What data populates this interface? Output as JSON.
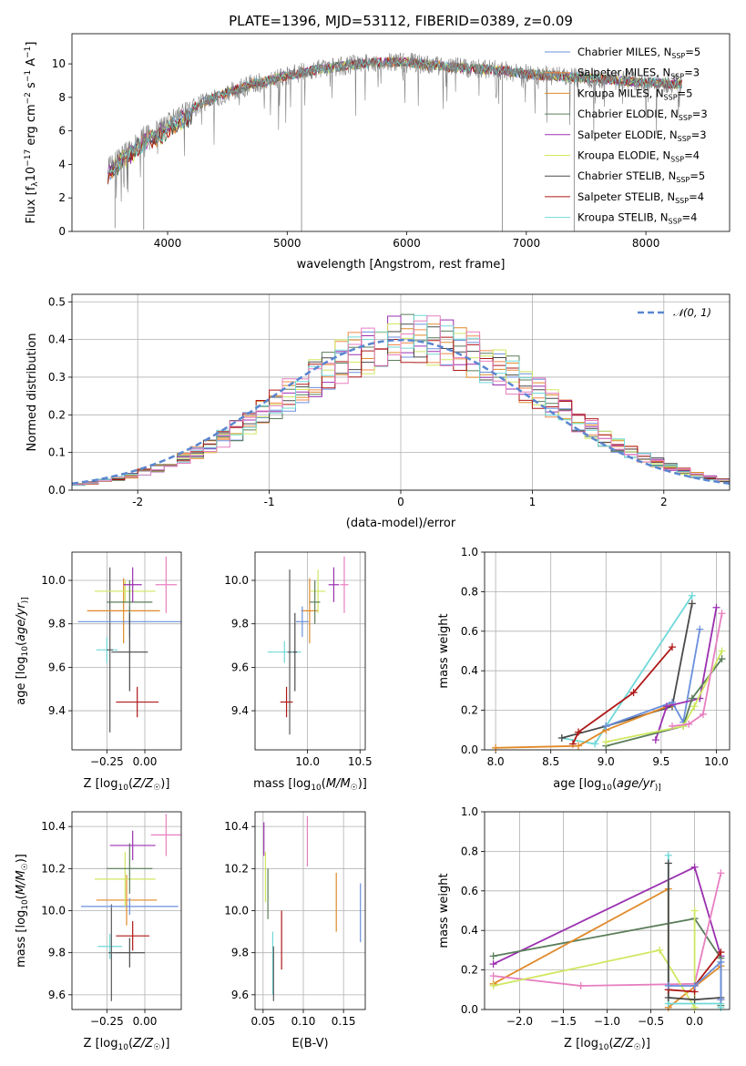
{
  "chart_data": [
    {
      "type": "line",
      "id": "spectrum",
      "title": "PLATE=1396, MJD=53112, FIBERID=0389, z=0.09",
      "xlabel": "wavelength [Angstrom, rest frame]",
      "ylabel": "Flux [f$_\\lambda$10$^{-17}$ erg cm$^{-2}$ s$^{-1}$ A$^{-1}$]",
      "ylabel_parts": [
        "Flux [f",
        "λ",
        "10",
        "−17",
        " erg cm",
        "−2",
        " s",
        "−1",
        " A",
        "−1",
        "]"
      ],
      "xlim": [
        3200,
        8700
      ],
      "ylim": [
        0,
        11.8
      ],
      "xticks": [
        4000,
        5000,
        6000,
        7000,
        8000
      ],
      "yticks": [
        0,
        2,
        4,
        6,
        8,
        10
      ],
      "legend_position": "right",
      "series": [
        {
          "name": "Chabrier MILES, N",
          "sub": "SSP",
          "suffix": "=5",
          "color": "#6a8fdc"
        },
        {
          "name": "Salpeter MILES, N",
          "sub": "SSP",
          "suffix": "=3",
          "color": "#f08a4b"
        },
        {
          "name": "Kroupa MILES, N",
          "sub": "SSP",
          "suffix": "=5",
          "color": "#e08a2a"
        },
        {
          "name": "Chabrier ELODIE, N",
          "sub": "SSP",
          "suffix": "=3",
          "color": "#5a7d5a"
        },
        {
          "name": "Salpeter ELODIE, N",
          "sub": "SSP",
          "suffix": "=3",
          "color": "#9b30b0"
        },
        {
          "name": "Kroupa ELODIE, N",
          "sub": "SSP",
          "suffix": "=4",
          "color": "#cfe860"
        },
        {
          "name": "Chabrier STELIB, N",
          "sub": "SSP",
          "suffix": "=5",
          "color": "#4a4a4a"
        },
        {
          "name": "Salpeter STELIB, N",
          "sub": "SSP",
          "suffix": "=4",
          "color": "#b01818"
        },
        {
          "name": "Kroupa STELIB, N",
          "sub": "SSP",
          "suffix": "=4",
          "color": "#70d8d8"
        }
      ],
      "continuum": {
        "x": [
          3500,
          3600,
          3700,
          3800,
          3900,
          4000,
          4100,
          4200,
          4300,
          4400,
          4500,
          4600,
          4700,
          4800,
          4900,
          5000,
          5200,
          5400,
          5600,
          5800,
          6000,
          6200,
          6400,
          6600,
          6800,
          7000,
          7200,
          7400,
          7600,
          7800,
          8000,
          8200
        ],
        "y": [
          3.8,
          4.5,
          5.1,
          5.7,
          6.0,
          6.5,
          7.0,
          7.3,
          7.7,
          8.0,
          8.3,
          8.5,
          8.8,
          8.9,
          9.1,
          9.3,
          9.6,
          9.8,
          10.0,
          10.1,
          10.1,
          9.9,
          9.8,
          9.7,
          9.6,
          9.4,
          9.3,
          9.2,
          9.1,
          9.0,
          8.9,
          8.8
        ]
      },
      "data_color": "#808080"
    },
    {
      "type": "line",
      "id": "residuals",
      "xlabel": "(data-model)/error",
      "ylabel": "Normed distribution",
      "xlim": [
        -2.5,
        2.5
      ],
      "ylim": [
        0,
        0.52
      ],
      "xticks": [
        -2,
        -1,
        0,
        1,
        2
      ],
      "yticks": [
        0.0,
        0.1,
        0.2,
        0.3,
        0.4,
        0.5
      ],
      "ytick_labels": [
        "0.0",
        "0.1",
        "0.2",
        "0.3",
        "0.4",
        "0.5"
      ],
      "legend_position": "top-right",
      "gaussian_label": "𝒩(0, 1)",
      "gaussian_color": "#5a86d0",
      "histogram_colors": [
        "#6a8fdc",
        "#f08a4b",
        "#e08a2a",
        "#5a7d5a",
        "#9b30b0",
        "#cfe860",
        "#4a4a4a",
        "#b01818",
        "#70d8d8",
        "#e77fc0"
      ]
    },
    {
      "type": "scatter",
      "id": "z-vs-age",
      "xlabel": "Z [log10(Z/Z☉)]",
      "xlabel_parts": [
        "Z [log",
        "10",
        "(",
        "Z/Z",
        "☉",
        ")]"
      ],
      "ylabel": "age [log10(age/yr)]",
      "ylabel_parts": [
        "age  [log",
        "10",
        "(",
        "age/yr",
        ")]"
      ],
      "xlim": [
        -0.48,
        0.24
      ],
      "ylim": [
        9.22,
        10.13
      ],
      "xticks": [
        -0.25,
        0.0
      ],
      "xtick_labels": [
        "−0.25",
        "0.00"
      ],
      "yticks": [
        9.4,
        9.6,
        9.8,
        10.0
      ],
      "yticks_labels": [
        "9.4",
        "9.6",
        "9.8",
        "10.0"
      ],
      "points": [
        {
          "x": -0.25,
          "y": 9.68,
          "xerr": 0.07,
          "yerr": 0.06,
          "color": "#70d8d8"
        },
        {
          "x": -0.23,
          "y": 9.68,
          "xerr": 0.02,
          "yerr": 0.38,
          "color": "#5a5a5a"
        },
        {
          "x": -0.05,
          "y": 9.44,
          "xerr": 0.14,
          "yerr": 0.07,
          "color": "#b01818"
        },
        {
          "x": -0.14,
          "y": 9.86,
          "xerr": 0.24,
          "yerr": 0.15,
          "color": "#e08a2a"
        },
        {
          "x": -0.1,
          "y": 9.81,
          "xerr": 0.34,
          "yerr": 0.07,
          "color": "#6a8fdc"
        },
        {
          "x": -0.13,
          "y": 9.95,
          "xerr": 0.2,
          "yerr": 0.05,
          "color": "#cfe860"
        },
        {
          "x": -0.1,
          "y": 9.9,
          "xerr": 0.15,
          "yerr": 0.1,
          "color": "#5a7d5a"
        },
        {
          "x": -0.1,
          "y": 9.67,
          "xerr": 0.12,
          "yerr": 0.18,
          "color": "#4a4a4a"
        },
        {
          "x": -0.08,
          "y": 9.98,
          "xerr": 0.06,
          "yerr": 0.08,
          "color": "#9b30b0"
        },
        {
          "x": 0.14,
          "y": 9.98,
          "xerr": 0.07,
          "yerr": 0.13,
          "color": "#e77fc0"
        }
      ]
    },
    {
      "type": "scatter",
      "id": "mass-vs-age",
      "xlabel": "mass [log10(M/M☉)]",
      "xlabel_parts": [
        "mass [log",
        "10",
        "(",
        "M/M",
        "☉",
        ")]"
      ],
      "xlim": [
        9.5,
        10.55
      ],
      "ylim": [
        9.22,
        10.13
      ],
      "xticks": [
        10.0,
        10.5
      ],
      "xtick_labels": [
        "10.0",
        "10.5"
      ],
      "yticks": [
        9.4,
        9.6,
        9.8,
        10.0
      ],
      "yticks_labels": [
        "9.4",
        "9.6",
        "9.8",
        "10.0"
      ],
      "points": [
        {
          "x": 9.78,
          "y": 9.67,
          "xerr": 0.16,
          "yerr": 0.05,
          "color": "#70d8d8"
        },
        {
          "x": 9.83,
          "y": 9.67,
          "xerr": 0.02,
          "yerr": 0.38,
          "color": "#5a5a5a"
        },
        {
          "x": 9.8,
          "y": 9.44,
          "xerr": 0.06,
          "yerr": 0.07,
          "color": "#b01818"
        },
        {
          "x": 10.02,
          "y": 9.86,
          "xerr": 0.08,
          "yerr": 0.15,
          "color": "#e08a2a"
        },
        {
          "x": 9.95,
          "y": 9.81,
          "xerr": 0.06,
          "yerr": 0.07,
          "color": "#6a8fdc"
        },
        {
          "x": 10.1,
          "y": 9.95,
          "xerr": 0.07,
          "yerr": 0.1,
          "color": "#cfe860"
        },
        {
          "x": 10.07,
          "y": 9.9,
          "xerr": 0.05,
          "yerr": 0.1,
          "color": "#5a7d5a"
        },
        {
          "x": 9.88,
          "y": 9.67,
          "xerr": 0.02,
          "yerr": 0.18,
          "color": "#4a4a4a"
        },
        {
          "x": 10.25,
          "y": 9.98,
          "xerr": 0.05,
          "yerr": 0.08,
          "color": "#9b30b0"
        },
        {
          "x": 10.35,
          "y": 9.98,
          "xerr": 0.04,
          "yerr": 0.13,
          "color": "#e77fc0"
        }
      ]
    },
    {
      "type": "line",
      "id": "age-vs-massweight",
      "xlabel": "age [log10(age/yr)]",
      "xlabel_parts": [
        "age  [log",
        "10",
        "(",
        "age/yr",
        ")]"
      ],
      "ylabel": "mass weight",
      "xlim": [
        7.9,
        10.12
      ],
      "ylim": [
        0,
        1.0
      ],
      "xticks": [
        8.0,
        8.5,
        9.0,
        9.5,
        10.0
      ],
      "xtick_labels": [
        "8.0",
        "8.5",
        "9.0",
        "9.5",
        "10.0"
      ],
      "yticks": [
        0.0,
        0.2,
        0.4,
        0.6,
        0.8,
        1.0
      ],
      "ytick_labels": [
        "0.0",
        "0.2",
        "0.4",
        "0.6",
        "0.8",
        "1.0"
      ],
      "series": [
        {
          "color": "#70d8d8",
          "x": [
            8.6,
            8.9,
            9.0,
            9.78
          ],
          "y": [
            0.06,
            0.03,
            0.12,
            0.78
          ]
        },
        {
          "color": "#4a4a4a",
          "x": [
            8.6,
            9.0,
            9.6,
            9.78
          ],
          "y": [
            0.06,
            0.12,
            0.22,
            0.74
          ]
        },
        {
          "color": "#b01818",
          "x": [
            8.7,
            8.75,
            9.25,
            9.6
          ],
          "y": [
            0.03,
            0.09,
            0.29,
            0.52
          ]
        },
        {
          "color": "#e08a2a",
          "x": [
            8.0,
            8.75,
            9.0,
            9.6
          ],
          "y": [
            0.01,
            0.02,
            0.1,
            0.23
          ]
        },
        {
          "color": "#6a8fdc",
          "x": [
            9.0,
            9.6,
            9.7,
            9.85
          ],
          "y": [
            0.12,
            0.24,
            0.14,
            0.61
          ]
        },
        {
          "color": "#9b30b0",
          "x": [
            9.45,
            9.55,
            9.85,
            10.0
          ],
          "y": [
            0.05,
            0.22,
            0.26,
            0.72
          ]
        },
        {
          "color": "#5a7d5a",
          "x": [
            9.0,
            9.7,
            9.78,
            10.05
          ],
          "y": [
            0.02,
            0.12,
            0.26,
            0.46
          ]
        },
        {
          "color": "#cfe860",
          "x": [
            9.0,
            9.7,
            9.8,
            10.05
          ],
          "y": [
            0.04,
            0.12,
            0.22,
            0.5
          ]
        },
        {
          "color": "#e77fc0",
          "x": [
            9.6,
            9.75,
            9.88,
            10.05
          ],
          "y": [
            0.12,
            0.13,
            0.18,
            0.69
          ]
        }
      ]
    },
    {
      "type": "scatter",
      "id": "z-vs-mass",
      "xlabel": "Z [log10(Z/Z☉)]",
      "xlabel_parts": [
        "Z [log",
        "10",
        "(",
        "Z/Z",
        "☉",
        ")]"
      ],
      "ylabel": "mass [log10(M/M☉)]",
      "ylabel_parts": [
        "mass [log",
        "10",
        "(",
        "M/M",
        "☉",
        ")]"
      ],
      "xlim": [
        -0.48,
        0.24
      ],
      "ylim": [
        9.53,
        10.47
      ],
      "xticks": [
        -0.25,
        0.0
      ],
      "xtick_labels": [
        "−0.25",
        "0.00"
      ],
      "yticks": [
        9.6,
        9.8,
        10.0,
        10.2,
        10.4
      ],
      "yticks_labels": [
        "9.6",
        "9.8",
        "10.0",
        "10.2",
        "10.4"
      ],
      "points": [
        {
          "x": -0.23,
          "y": 9.83,
          "xerr": 0.08,
          "yerr": 0.06,
          "color": "#70d8d8"
        },
        {
          "x": -0.22,
          "y": 9.8,
          "xerr": 0.02,
          "yerr": 0.23,
          "color": "#5a5a5a"
        },
        {
          "x": -0.08,
          "y": 9.88,
          "xerr": 0.11,
          "yerr": 0.07,
          "color": "#b01818"
        },
        {
          "x": -0.12,
          "y": 10.05,
          "xerr": 0.2,
          "yerr": 0.12,
          "color": "#e08a2a"
        },
        {
          "x": -0.1,
          "y": 10.02,
          "xerr": 0.32,
          "yerr": 0.04,
          "color": "#6a8fdc"
        },
        {
          "x": -0.13,
          "y": 10.15,
          "xerr": 0.2,
          "yerr": 0.13,
          "color": "#cfe860"
        },
        {
          "x": -0.1,
          "y": 10.2,
          "xerr": 0.15,
          "yerr": 0.12,
          "color": "#5a7d5a"
        },
        {
          "x": -0.1,
          "y": 9.8,
          "xerr": 0.1,
          "yerr": 0.07,
          "color": "#4a4a4a"
        },
        {
          "x": -0.08,
          "y": 10.31,
          "xerr": 0.15,
          "yerr": 0.07,
          "color": "#9b30b0"
        },
        {
          "x": 0.14,
          "y": 10.36,
          "xerr": 0.1,
          "yerr": 0.1,
          "color": "#e77fc0"
        }
      ]
    },
    {
      "type": "scatter",
      "id": "ebv-vs-mass",
      "xlabel": "E(B-V)",
      "xlim": [
        0.04,
        0.177
      ],
      "ylim": [
        9.53,
        10.47
      ],
      "xticks": [
        0.05,
        0.1,
        0.15
      ],
      "xtick_labels": [
        "0.05",
        "0.10",
        "0.15"
      ],
      "yticks": [
        9.6,
        9.8,
        10.0,
        10.2,
        10.4
      ],
      "yticks_labels": [
        "9.6",
        "9.8",
        "10.0",
        "10.2",
        "10.4"
      ],
      "points": [
        {
          "x": 0.051,
          "y": 10.34,
          "xerr": 0.0,
          "yerr": 0.08,
          "color": "#9b30b0"
        },
        {
          "x": 0.053,
          "y": 10.16,
          "xerr": 0.0,
          "yerr": 0.12,
          "color": "#cfe860"
        },
        {
          "x": 0.056,
          "y": 10.08,
          "xerr": 0.0,
          "yerr": 0.12,
          "color": "#5a7d5a"
        },
        {
          "x": 0.062,
          "y": 9.75,
          "xerr": 0.0,
          "yerr": 0.15,
          "color": "#70d8d8"
        },
        {
          "x": 0.063,
          "y": 9.7,
          "xerr": 0.0,
          "yerr": 0.13,
          "color": "#5a5a5a"
        },
        {
          "x": 0.073,
          "y": 9.86,
          "xerr": 0.0,
          "yerr": 0.14,
          "color": "#b01818"
        },
        {
          "x": 0.105,
          "y": 10.33,
          "xerr": 0.0,
          "yerr": 0.12,
          "color": "#e77fc0"
        },
        {
          "x": 0.141,
          "y": 10.04,
          "xerr": 0.0,
          "yerr": 0.14,
          "color": "#e08a2a"
        },
        {
          "x": 0.171,
          "y": 9.99,
          "xerr": 0.0,
          "yerr": 0.14,
          "color": "#6a8fdc"
        }
      ]
    },
    {
      "type": "line",
      "id": "z-vs-massweight",
      "xlabel": "Z [log10(Z/Z☉)]",
      "xlabel_parts": [
        "Z [log",
        "10",
        "(",
        "Z/Z",
        "☉",
        ")]"
      ],
      "ylabel": "mass weight",
      "xlim": [
        -2.4,
        0.4
      ],
      "ylim": [
        0,
        1.0
      ],
      "xticks": [
        -2.0,
        -1.5,
        -1.0,
        -0.5,
        0.0
      ],
      "xtick_labels": [
        "−2.0",
        "−1.5",
        "−1.0",
        "−0.5",
        "0.0"
      ],
      "yticks": [
        0.0,
        0.2,
        0.4,
        0.6,
        0.8,
        1.0
      ],
      "ytick_labels": [
        "0.0",
        "0.2",
        "0.4",
        "0.6",
        "0.8",
        "1.0"
      ],
      "series": [
        {
          "color": "#9b30b0",
          "x": [
            -2.3,
            0.0,
            0.3,
            0.3
          ],
          "y": [
            0.23,
            0.72,
            0.27,
            0.05
          ]
        },
        {
          "color": "#5a7d5a",
          "x": [
            -2.3,
            0.0,
            0.3,
            0.3
          ],
          "y": [
            0.27,
            0.46,
            0.26,
            0.02
          ]
        },
        {
          "color": "#e08a2a",
          "x": [
            -2.3,
            -0.3,
            -0.3,
            0.3
          ],
          "y": [
            0.13,
            0.61,
            0.01,
            0.22
          ]
        },
        {
          "color": "#e77fc0",
          "x": [
            -2.3,
            -1.3,
            0.0,
            0.3
          ],
          "y": [
            0.17,
            0.12,
            0.13,
            0.69
          ]
        },
        {
          "color": "#cfe860",
          "x": [
            -2.3,
            -0.4,
            0.0,
            0.0
          ],
          "y": [
            0.12,
            0.3,
            0.01,
            0.5
          ]
        },
        {
          "color": "#70d8d8",
          "x": [
            -0.3,
            -0.3,
            0.3,
            0.3
          ],
          "y": [
            0.78,
            0.03,
            0.03,
            0.01
          ]
        },
        {
          "color": "#4a4a4a",
          "x": [
            -0.3,
            -0.3,
            0.0,
            0.3
          ],
          "y": [
            0.74,
            0.06,
            0.05,
            0.06
          ]
        },
        {
          "color": "#b01818",
          "x": [
            -0.3,
            0.0,
            0.0,
            0.3
          ],
          "y": [
            0.1,
            0.09,
            0.12,
            0.29
          ]
        },
        {
          "color": "#6a8fdc",
          "x": [
            -0.3,
            0.0,
            0.3,
            0.3
          ],
          "y": [
            0.12,
            0.12,
            0.24,
            0.05
          ]
        }
      ]
    }
  ]
}
